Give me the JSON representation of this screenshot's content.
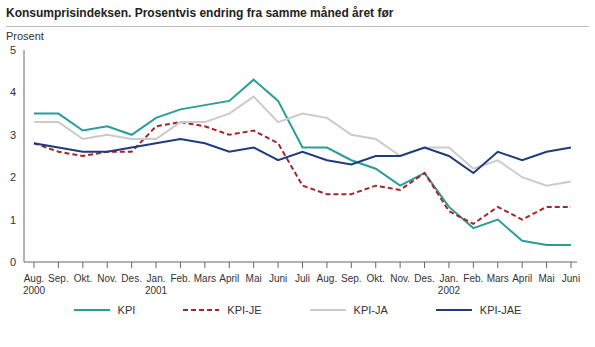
{
  "chart_data": {
    "type": "line",
    "title": "Konsumprisindeksen. Prosentvis endring fra samme måned året før",
    "ylabel": "Prosent",
    "categories": [
      "Aug.\n2000",
      "Sep.",
      "Okt.",
      "Nov.",
      "Des.",
      "Jan.\n2001",
      "Feb.",
      "Mars",
      "April",
      "Mai",
      "Juni",
      "Juli",
      "Aug.",
      "Sep.",
      "Okt.",
      "Nov.",
      "Des.",
      "Jan.\n2002",
      "Feb.",
      "Mars",
      "April",
      "Mai",
      "Juni"
    ],
    "series": [
      {
        "name": "KPI",
        "color": "#2a9d96",
        "line_style": "solid",
        "values": [
          3.5,
          3.5,
          3.1,
          3.2,
          3.0,
          3.4,
          3.6,
          3.7,
          3.8,
          4.3,
          3.8,
          2.7,
          2.7,
          2.4,
          2.2,
          1.8,
          2.1,
          1.3,
          0.8,
          1.0,
          0.5,
          0.4,
          0.4
        ]
      },
      {
        "name": "KPI-JE",
        "color": "#a3262a",
        "line_style": "dashed",
        "values": [
          2.8,
          2.6,
          2.5,
          2.6,
          2.6,
          3.2,
          3.3,
          3.2,
          3.0,
          3.1,
          2.8,
          1.8,
          1.6,
          1.6,
          1.8,
          1.7,
          2.1,
          1.2,
          0.9,
          1.3,
          1.0,
          1.3,
          1.3
        ]
      },
      {
        "name": "KPI-JA",
        "color": "#cbcbcb",
        "line_style": "solid",
        "values": [
          3.3,
          3.3,
          2.9,
          3.0,
          2.9,
          2.9,
          3.3,
          3.3,
          3.5,
          3.9,
          3.3,
          3.5,
          3.4,
          3.0,
          2.9,
          2.5,
          2.7,
          2.7,
          2.2,
          2.4,
          2.0,
          1.8,
          1.9
        ]
      },
      {
        "name": "KPI-JAE",
        "color": "#1f3b7c",
        "line_style": "solid",
        "values": [
          2.8,
          2.7,
          2.6,
          2.6,
          2.7,
          2.8,
          2.9,
          2.8,
          2.6,
          2.7,
          2.4,
          2.6,
          2.4,
          2.3,
          2.5,
          2.5,
          2.7,
          2.5,
          2.1,
          2.6,
          2.4,
          2.6,
          2.7
        ]
      }
    ],
    "ylim": [
      0,
      5
    ],
    "yticks": [
      0,
      1,
      2,
      3,
      4,
      5
    ],
    "grid": false,
    "legend": "bottom"
  }
}
